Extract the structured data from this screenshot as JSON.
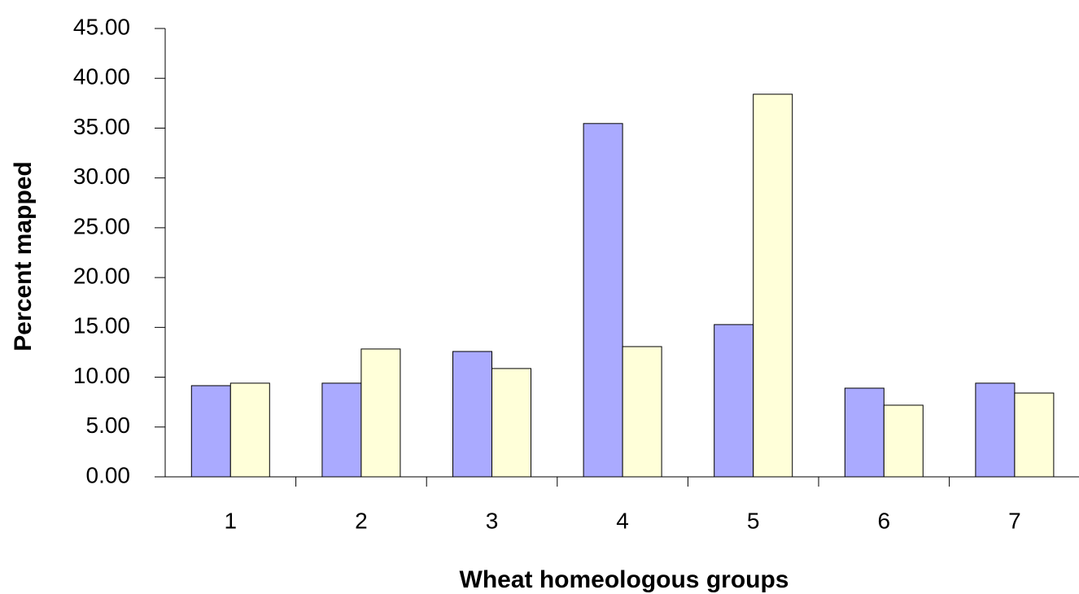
{
  "chart_data": {
    "type": "bar",
    "x_label": "Wheat homeologous groups",
    "y_label": "Percent mapped",
    "categories": [
      "1",
      "2",
      "3",
      "4",
      "5",
      "6",
      "7"
    ],
    "series": [
      {
        "color": "#aaaaff",
        "values": [
          9.15,
          9.4,
          12.58,
          35.46,
          15.28,
          8.9,
          9.4
        ]
      },
      {
        "color": "#ffffd9",
        "values": [
          9.4,
          12.83,
          10.87,
          13.07,
          38.4,
          7.19,
          8.41
        ]
      }
    ],
    "ylim": [
      0,
      45
    ],
    "yticks": [
      {
        "value": 0,
        "label": "0.00"
      },
      {
        "value": 5,
        "label": "5.00"
      },
      {
        "value": 10,
        "label": "10.00"
      },
      {
        "value": 15,
        "label": "15.00"
      },
      {
        "value": 20,
        "label": "20.00"
      },
      {
        "value": 25,
        "label": "25.00"
      },
      {
        "value": 30,
        "label": "30.00"
      },
      {
        "value": 35,
        "label": "35.00"
      },
      {
        "value": 40,
        "label": "40.00"
      },
      {
        "value": 45,
        "label": "45.00"
      }
    ],
    "grid": false
  }
}
